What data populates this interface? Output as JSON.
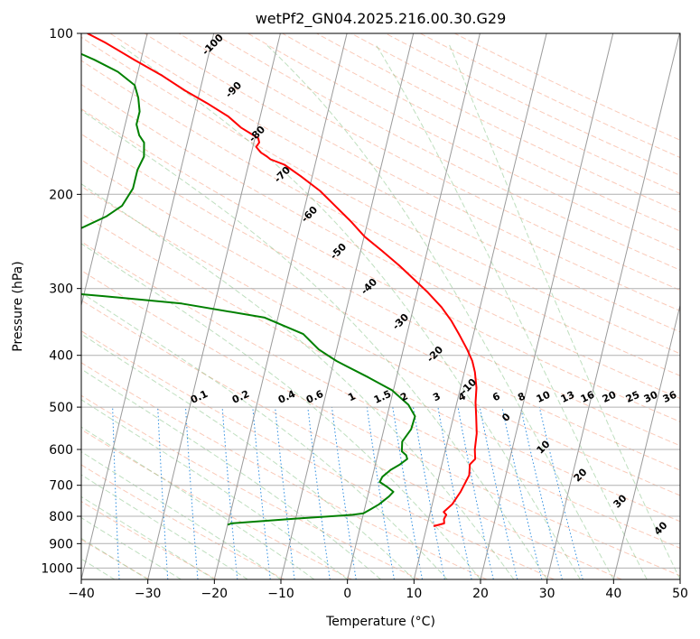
{
  "chart_data": {
    "type": "line",
    "title": "wetPf2_GN04.2025.216.00.30.G29",
    "xlabel": "Temperature (°C)",
    "ylabel": "Pressure (hPa)",
    "xlim": [
      -40,
      50
    ],
    "ylim": [
      1050,
      100
    ],
    "y_scale": "log",
    "grid": true,
    "xticks": [
      -40,
      -30,
      -20,
      -10,
      0,
      10,
      20,
      30,
      40,
      50
    ],
    "yticks": [
      100,
      200,
      300,
      400,
      500,
      600,
      700,
      800,
      900,
      1000
    ],
    "dry_adiabat_labels": [
      "-100",
      "-90",
      "-80",
      "-70",
      "-60",
      "-50",
      "-40",
      "-30",
      "-20",
      "-10"
    ],
    "mixing_ratio_labels": [
      "0.1",
      "0.2",
      "0.4",
      "0.6",
      "1",
      "1.5",
      "2",
      "3",
      "4",
      "6",
      "8",
      "10",
      "13",
      "16",
      "20",
      "25",
      "30",
      "36"
    ],
    "moist_adiabat_labels": [
      "0",
      "10",
      "20",
      "30",
      "40"
    ],
    "series": [
      {
        "color": "#ff0000",
        "points": [
          [
            11,
            835
          ],
          [
            12.5,
            825
          ],
          [
            12.3,
            810
          ],
          [
            12.5,
            795
          ],
          [
            12,
            785
          ],
          [
            13,
            760
          ],
          [
            13.8,
            720
          ],
          [
            14.5,
            670
          ],
          [
            14.2,
            640
          ],
          [
            14.8,
            625
          ],
          [
            14.4,
            600
          ],
          [
            14.1,
            560
          ],
          [
            13.4,
            520
          ],
          [
            12.8,
            490
          ],
          [
            12.4,
            460
          ],
          [
            11.6,
            430
          ],
          [
            10.8,
            410
          ],
          [
            9.6,
            390
          ],
          [
            7.8,
            365
          ],
          [
            6.2,
            345
          ],
          [
            4.2,
            325
          ],
          [
            1.6,
            305
          ],
          [
            -0.7,
            290
          ],
          [
            -3.6,
            272
          ],
          [
            -6.8,
            255
          ],
          [
            -9.9,
            240
          ],
          [
            -12.5,
            225
          ],
          [
            -15.5,
            210
          ],
          [
            -18.3,
            197
          ],
          [
            -21.7,
            185
          ],
          [
            -24.6,
            176
          ],
          [
            -26.9,
            172
          ],
          [
            -27.5,
            170
          ],
          [
            -28.6,
            167
          ],
          [
            -29.5,
            163
          ],
          [
            -29.2,
            160
          ],
          [
            -29.5,
            157
          ],
          [
            -32.5,
            150
          ],
          [
            -34.8,
            143
          ],
          [
            -38.5,
            135
          ],
          [
            -42.2,
            128
          ],
          [
            -46.2,
            120
          ],
          [
            -51,
            112
          ],
          [
            -56,
            104
          ],
          [
            -59,
            100
          ]
        ]
      },
      {
        "color": "#008000",
        "points": [
          [
            -20,
            830
          ],
          [
            -19.5,
            825
          ],
          [
            -10,
            808
          ],
          [
            -1.6,
            795
          ],
          [
            0,
            790
          ],
          [
            1,
            775
          ],
          [
            2,
            760
          ],
          [
            3.2,
            735
          ],
          [
            3.7,
            720
          ],
          [
            2.6,
            705
          ],
          [
            1.3,
            690
          ],
          [
            1.5,
            675
          ],
          [
            2.5,
            655
          ],
          [
            3.7,
            640
          ],
          [
            4.6,
            625
          ],
          [
            4.3,
            615
          ],
          [
            3.5,
            605
          ],
          [
            3.2,
            580
          ],
          [
            4.1,
            550
          ],
          [
            4.2,
            520
          ],
          [
            2.8,
            495
          ],
          [
            -0.2,
            465
          ],
          [
            -4.2,
            440
          ],
          [
            -9.6,
            410
          ],
          [
            -12.7,
            390
          ],
          [
            -15.6,
            365
          ],
          [
            -22,
            340
          ],
          [
            -35,
            320
          ],
          [
            -47,
            310
          ],
          [
            -56.5,
            303
          ],
          [
            -58,
            300
          ],
          [
            -66,
            286
          ],
          [
            -70.5,
            280
          ],
          [
            -63,
            258
          ],
          [
            -57.5,
            245
          ],
          [
            -53,
            232
          ],
          [
            -49.5,
            220
          ],
          [
            -47.5,
            210
          ],
          [
            -46.5,
            195
          ],
          [
            -46.5,
            180
          ],
          [
            -46,
            170
          ],
          [
            -46.5,
            160
          ],
          [
            -47.5,
            155
          ],
          [
            -48.3,
            148
          ],
          [
            -48.3,
            140
          ],
          [
            -49,
            132
          ],
          [
            -50,
            125
          ],
          [
            -53,
            118
          ],
          [
            -57,
            112
          ],
          [
            -61,
            107
          ],
          [
            -64,
            104
          ],
          [
            -66,
            101
          ]
        ]
      }
    ]
  }
}
